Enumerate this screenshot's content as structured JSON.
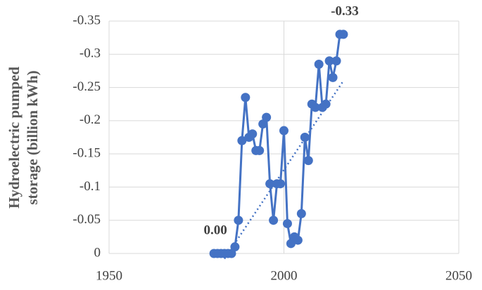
{
  "chart_data": {
    "type": "line",
    "y_label_lines": [
      "Hydroelectric pumped",
      "storage (billion kWh)"
    ],
    "x": [
      1980,
      1981,
      1982,
      1983,
      1984,
      1985,
      1986,
      1987,
      1988,
      1989,
      1990,
      1991,
      1992,
      1993,
      1994,
      1995,
      1996,
      1997,
      1998,
      1999,
      2000,
      2001,
      2002,
      2003,
      2004,
      2005,
      2006,
      2007,
      2008,
      2009,
      2010,
      2011,
      2012,
      2013,
      2014,
      2015,
      2016,
      2017
    ],
    "series": [
      {
        "color": "#4472c4",
        "values": [
          0,
          0,
          0,
          0,
          0,
          0,
          -0.01,
          -0.05,
          -0.17,
          -0.235,
          -0.175,
          -0.18,
          -0.155,
          -0.155,
          -0.195,
          -0.205,
          -0.105,
          -0.05,
          -0.105,
          -0.105,
          -0.185,
          -0.045,
          -0.015,
          -0.025,
          -0.02,
          -0.06,
          -0.175,
          -0.14,
          -0.225,
          -0.22,
          -0.285,
          -0.22,
          -0.225,
          -0.29,
          -0.265,
          -0.29,
          -0.33,
          -0.33
        ],
        "value_labels": [
          "0.00",
          null,
          null,
          null,
          null,
          null,
          null,
          null,
          null,
          null,
          null,
          null,
          null,
          null,
          null,
          null,
          null,
          null,
          null,
          null,
          null,
          null,
          null,
          null,
          null,
          null,
          null,
          null,
          null,
          null,
          null,
          null,
          null,
          null,
          null,
          null,
          null,
          "-0.33"
        ]
      }
    ],
    "trendline": {
      "x": [
        1983,
        2017
      ],
      "values": [
        0.008,
        -0.26
      ]
    },
    "xlim": [
      1950,
      2050
    ],
    "xticks": [
      1950,
      2000,
      2050
    ],
    "ylim": [
      0,
      -0.35
    ],
    "yticks": [
      0,
      -0.05,
      -0.1,
      -0.15,
      -0.2,
      -0.25,
      -0.3,
      -0.35
    ],
    "grid": true
  }
}
